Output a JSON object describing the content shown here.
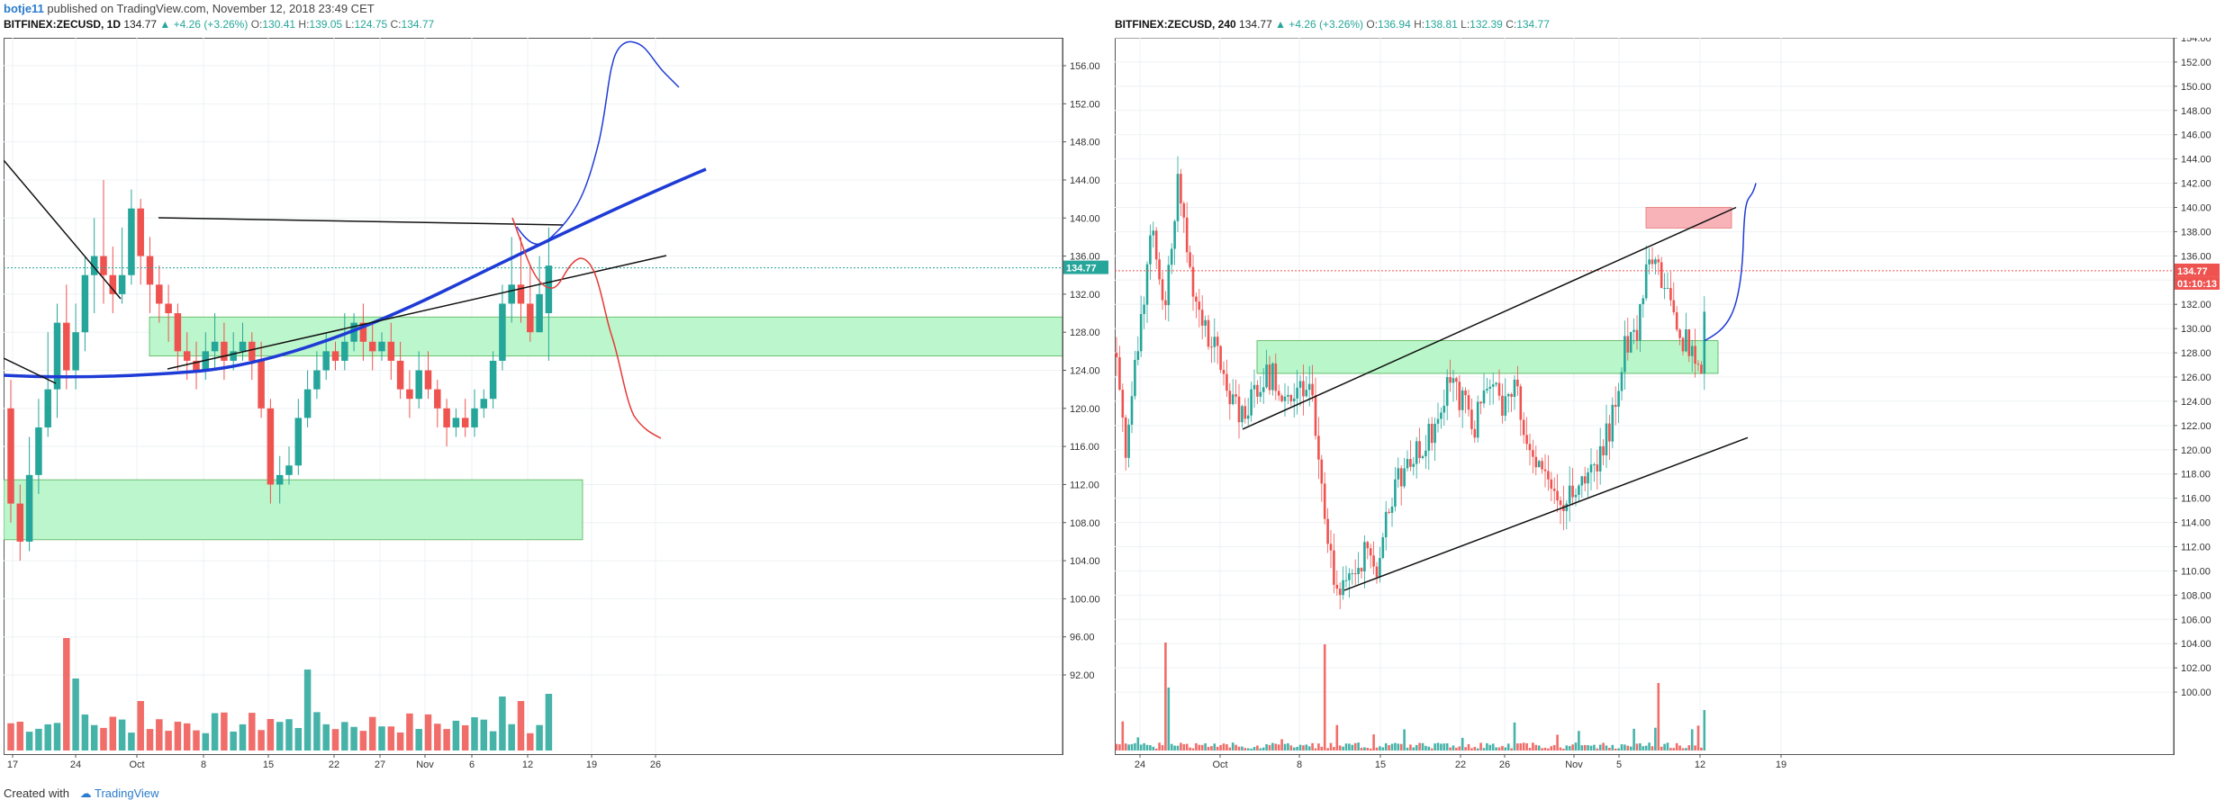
{
  "header": {
    "user": "botje11",
    "text": "published on TradingView.com, November 12, 2018 23:49 CET"
  },
  "left_chart": {
    "symbol": "BITFINEX:ZECUSD, 1D",
    "last": "134.77",
    "change": "▲ +4.26 (+3.26%)",
    "o_label": "O:",
    "o": "130.41",
    "h_label": "H:",
    "h": "139.05",
    "l_label": "L:",
    "l": "124.75",
    "c_label": "C:",
    "c": "134.77",
    "price_ticks": [
      "156.00",
      "152.00",
      "148.00",
      "144.00",
      "140.00",
      "136.00",
      "132.00",
      "128.00",
      "124.00",
      "120.00",
      "116.00",
      "112.00",
      "108.00",
      "104.00",
      "100.00",
      "96.00",
      "92.00"
    ],
    "last_tag": "134.77",
    "time_ticks": [
      "17",
      "24",
      "Oct",
      "8",
      "15",
      "22",
      "27",
      "Nov",
      "6",
      "12",
      "19",
      "26"
    ]
  },
  "right_chart": {
    "symbol": "BITFINEX:ZECUSD, 240",
    "last": "134.77",
    "change": "▲ +4.26 (+3.26%)",
    "o_label": "O:",
    "o": "136.94",
    "h_label": "H:",
    "h": "138.81",
    "l_label": "L:",
    "l": "132.39",
    "c_label": "C:",
    "c": "134.77",
    "price_ticks": [
      "154.00",
      "152.00",
      "150.00",
      "148.00",
      "146.00",
      "144.00",
      "142.00",
      "140.00",
      "138.00",
      "136.00",
      "134.00",
      "132.00",
      "130.00",
      "128.00",
      "126.00",
      "124.00",
      "122.00",
      "120.00",
      "118.00",
      "116.00",
      "114.00",
      "112.00",
      "110.00",
      "108.00",
      "106.00",
      "104.00",
      "102.00",
      "100.00"
    ],
    "last_tag": "134.77",
    "countdown_tag": "01:10:13",
    "time_ticks": [
      "24",
      "Oct",
      "8",
      "15",
      "22",
      "26",
      "Nov",
      "5",
      "12",
      "19"
    ]
  },
  "footer": {
    "created_with": "Created with",
    "brand": "TradingView"
  },
  "colors": {
    "up": "#26a69a",
    "down": "#ef5350",
    "zone": "#b9f6ca",
    "resistance": "#f8b3b9",
    "curve": "#1e3bd6"
  }
}
